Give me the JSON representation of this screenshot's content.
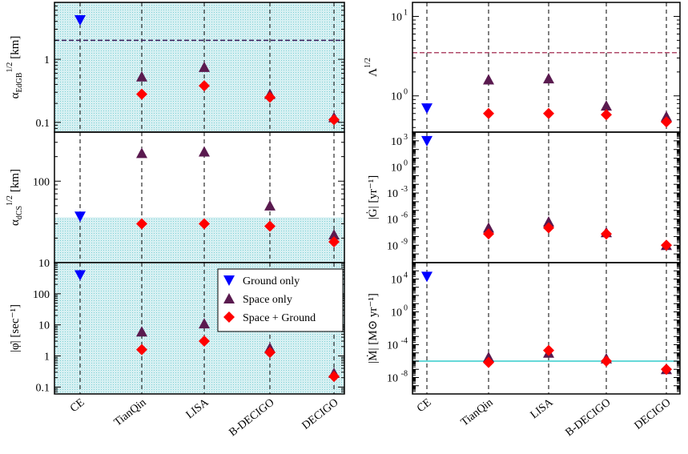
{
  "categories": [
    "CE",
    "TianQin",
    "LISA",
    "B-DECIGO",
    "DECIGO"
  ],
  "legend": [
    {
      "label": "Ground only",
      "marker": "triangle-down",
      "color": "#0000ff"
    },
    {
      "label": "Space only",
      "marker": "triangle-up",
      "color": "#5a1a4f"
    },
    {
      "label": "Space + Ground",
      "marker": "diamond",
      "color": "#ff0000"
    }
  ],
  "colors": {
    "ground": "#0000ff",
    "space": "#5a1a4f",
    "combined": "#ff0000",
    "band": "#bfe7ea",
    "cyan_line": "#33cccc",
    "dash_purple": "#3a1a5a",
    "dash_pink": "#b04a6a"
  },
  "chart_data": [
    {
      "id": "edgb",
      "type": "scatter",
      "scale": "log",
      "ylabel": {
        "main": "α",
        "sub": "EdGB",
        "sup": "1/2",
        "unit": "[km]"
      },
      "ylim": [
        0.07,
        8
      ],
      "ticks": [
        {
          "v": 0.1,
          "t": "0.1"
        },
        {
          "v": 1,
          "t": "1"
        }
      ],
      "shaded_band": [
        0.07,
        8
      ],
      "hline": {
        "value": 2.0,
        "style": "dash-purple"
      },
      "series": [
        {
          "name": "Ground only",
          "values": [
            4.2,
            null,
            null,
            null,
            null
          ]
        },
        {
          "name": "Space only",
          "values": [
            null,
            0.53,
            0.75,
            0.28,
            0.12
          ]
        },
        {
          "name": "Space + Ground",
          "values": [
            null,
            0.28,
            0.38,
            0.25,
            0.11
          ]
        }
      ]
    },
    {
      "id": "dcs",
      "type": "scatter",
      "scale": "log",
      "ylabel": {
        "main": "α",
        "sub": "dCS",
        "sup": "1/2",
        "unit": "[km]"
      },
      "ylim": [
        10,
        400
      ],
      "ticks": [
        {
          "v": 10,
          "t": "10"
        },
        {
          "v": 100,
          "t": "100"
        }
      ],
      "shaded_band": [
        10,
        36
      ],
      "series": [
        {
          "name": "Ground only",
          "values": [
            37,
            null,
            null,
            null,
            null
          ]
        },
        {
          "name": "Space only",
          "values": [
            null,
            220,
            230,
            50,
            22
          ]
        },
        {
          "name": "Space + Ground",
          "values": [
            null,
            30,
            30,
            28,
            18
          ]
        }
      ]
    },
    {
      "id": "phi",
      "type": "scatter",
      "scale": "log",
      "ylabel": {
        "text": "|φ̇| [sec⁻¹]"
      },
      "ylim": [
        0.06,
        1000
      ],
      "ticks": [
        {
          "v": 0.1,
          "t": "0.1"
        },
        {
          "v": 1,
          "t": "1"
        },
        {
          "v": 10,
          "t": "10"
        },
        {
          "v": 100,
          "t": "100"
        }
      ],
      "shaded_band": [
        0.06,
        1000
      ],
      "series": [
        {
          "name": "Ground only",
          "values": [
            400,
            null,
            null,
            null,
            null
          ]
        },
        {
          "name": "Space only",
          "values": [
            null,
            6,
            11,
            1.8,
            0.28
          ]
        },
        {
          "name": "Space + Ground",
          "values": [
            null,
            1.6,
            3.0,
            1.3,
            0.22
          ]
        }
      ]
    },
    {
      "id": "lambda",
      "type": "scatter",
      "scale": "log",
      "ylabel": {
        "main": "Λ",
        "sup": "1/2"
      },
      "ylim": [
        0.35,
        15
      ],
      "ticks": [
        {
          "v": 1,
          "t": "10"
        },
        {
          "v": 10,
          "t": "10"
        }
      ],
      "tick_sups": [
        "0",
        "1"
      ],
      "hline": {
        "value": 3.5,
        "style": "dash-pink"
      },
      "series": [
        {
          "name": "Ground only",
          "values": [
            0.7,
            null,
            null,
            null,
            null
          ]
        },
        {
          "name": "Space only",
          "values": [
            null,
            1.6,
            1.65,
            0.75,
            0.55
          ]
        },
        {
          "name": "Space + Ground",
          "values": [
            null,
            0.6,
            0.6,
            0.58,
            0.47
          ]
        }
      ]
    },
    {
      "id": "gdot",
      "type": "scatter",
      "scale": "log",
      "ylabel": {
        "text": "|Ġ| [yr⁻¹]"
      },
      "ylim": [
        1e-11,
        10000.0
      ],
      "ticks": [
        {
          "v": 1000.0,
          "t": "10"
        },
        {
          "v": 1,
          "t": "10"
        },
        {
          "v": 0.001,
          "t": "10"
        },
        {
          "v": 1e-06,
          "t": "10"
        },
        {
          "v": 1e-09,
          "t": "10"
        }
      ],
      "tick_sups": [
        "3",
        "0",
        "-3",
        "-6",
        "-9"
      ],
      "series": [
        {
          "name": "Ground only",
          "values": [
            1000,
            null,
            null,
            null,
            null
          ]
        },
        {
          "name": "Space only",
          "values": [
            null,
            1e-07,
            5e-07,
            3e-08,
            1e-09
          ]
        },
        {
          "name": "Space + Ground",
          "values": [
            null,
            2e-08,
            1e-07,
            2e-08,
            1e-09
          ]
        }
      ]
    },
    {
      "id": "mdot",
      "type": "scatter",
      "scale": "log",
      "ylabel": {
        "text": "|Ṁ| [M⊙ yr⁻¹]"
      },
      "ylim": [
        1e-10,
        1000000.0
      ],
      "ticks": [
        {
          "v": 10000.0,
          "t": "10"
        },
        {
          "v": 1,
          "t": "10"
        },
        {
          "v": 0.0001,
          "t": "10"
        },
        {
          "v": 1e-08,
          "t": "10"
        }
      ],
      "tick_sups": [
        "4",
        "0",
        "-4",
        "-8"
      ],
      "hline": {
        "value": 1e-06,
        "style": "cyan"
      },
      "series": [
        {
          "name": "Ground only",
          "values": [
            20000.0,
            null,
            null,
            null,
            null
          ]
        },
        {
          "name": "Space only",
          "values": [
            null,
            3e-06,
            1e-05,
            2e-06,
            1e-07
          ]
        },
        {
          "name": "Space + Ground",
          "values": [
            null,
            7e-07,
            2e-05,
            1e-06,
            1e-07
          ]
        }
      ]
    }
  ]
}
